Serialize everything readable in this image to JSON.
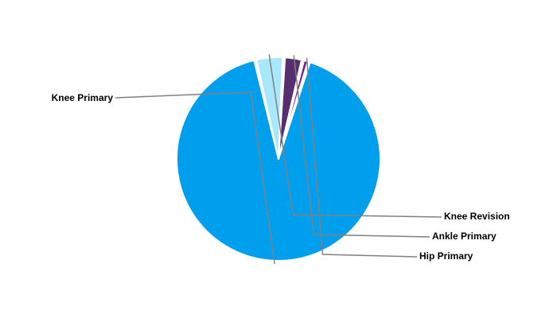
{
  "chart_data": {
    "type": "pie",
    "title": "",
    "legend": "none",
    "slices": [
      {
        "label": "Knee Primary",
        "value": 91.5,
        "color": "#009fee"
      },
      {
        "label": "Knee Revision",
        "value": 4.5,
        "color": "#a8e8fc"
      },
      {
        "label": "Ankle Primary",
        "value": 3.0,
        "color": "#56306e"
      },
      {
        "label": "Hip Primary",
        "value": 1.0,
        "color": "#7a1d8c"
      }
    ]
  }
}
